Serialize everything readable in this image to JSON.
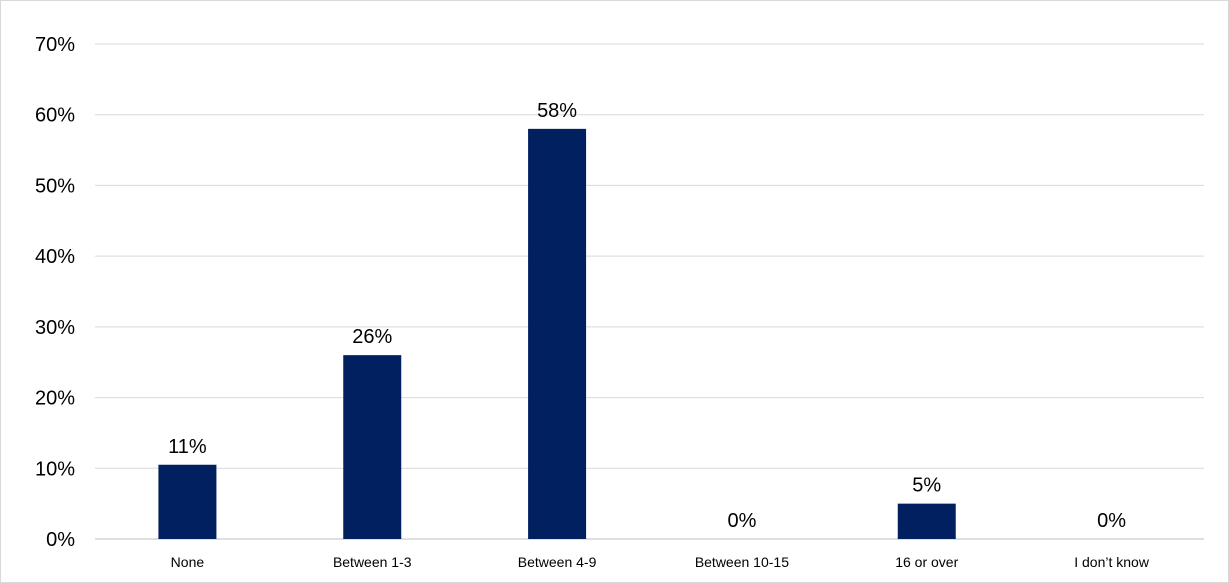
{
  "chart_data": {
    "type": "bar",
    "title": "",
    "xlabel": "",
    "ylabel": "",
    "categories": [
      "None",
      "Between 1-3",
      "Between 4-9",
      "Between 10-15",
      "16 or over",
      "I don’t know"
    ],
    "values": [
      10.5,
      26,
      58,
      0,
      5,
      0
    ],
    "data_labels": [
      "11%",
      "26%",
      "58%",
      "0%",
      "5%",
      "0%"
    ],
    "ylim": [
      0,
      70
    ],
    "yticks": [
      0,
      10,
      20,
      30,
      40,
      50,
      60,
      70
    ],
    "ytick_labels": [
      "0%",
      "10%",
      "20%",
      "30%",
      "40%",
      "50%",
      "60%",
      "70%"
    ],
    "grid": true,
    "legend": "none",
    "colors": {
      "bar": "#002060",
      "grid": "#d9d9d9",
      "axis": "#bfbfbf",
      "text": "#000000"
    }
  }
}
